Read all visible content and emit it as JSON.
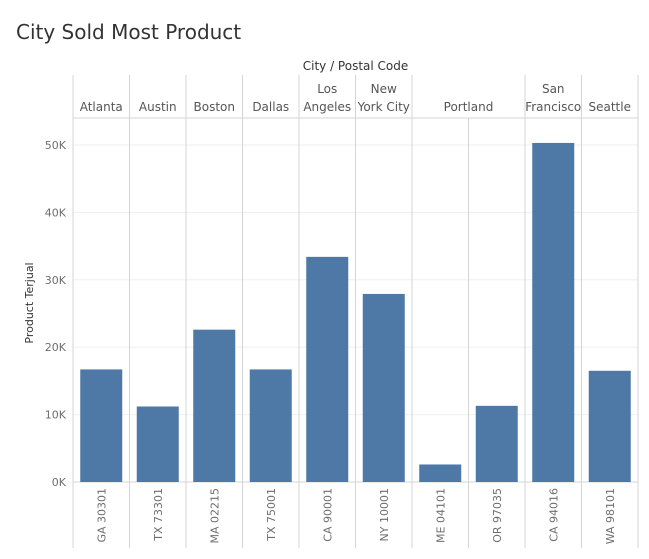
{
  "title": "City Sold Most Product",
  "header_title": "City / Postal Code",
  "colors": {
    "bar": "#4e79a7",
    "axis_text": "#6e6e6e",
    "header_text": "#555555",
    "divider": "#d4d4d4",
    "grid": "#efefef"
  },
  "chart_data": {
    "type": "bar",
    "title": "City Sold Most Product",
    "ylabel": "Product Terjual",
    "xlabel": "City / Postal Code",
    "ylim": [
      0,
      54000
    ],
    "yticks": [
      0,
      10000,
      20000,
      30000,
      40000,
      50000
    ],
    "ytick_labels": [
      "0K",
      "10K",
      "20K",
      "30K",
      "40K",
      "50K"
    ],
    "grid": true,
    "cities": [
      {
        "name": "Atlanta",
        "label_lines": [
          "Atlanta"
        ],
        "postal_codes": [
          "GA 30301"
        ]
      },
      {
        "name": "Austin",
        "label_lines": [
          "Austin"
        ],
        "postal_codes": [
          "TX 73301"
        ]
      },
      {
        "name": "Boston",
        "label_lines": [
          "Boston"
        ],
        "postal_codes": [
          "MA 02215"
        ]
      },
      {
        "name": "Dallas",
        "label_lines": [
          "Dallas"
        ],
        "postal_codes": [
          "TX 75001"
        ]
      },
      {
        "name": "Los Angeles",
        "label_lines": [
          "Los",
          "Angeles"
        ],
        "postal_codes": [
          "CA 90001"
        ]
      },
      {
        "name": "New York City",
        "label_lines": [
          "New",
          "York City"
        ],
        "postal_codes": [
          "NY 10001"
        ]
      },
      {
        "name": "Portland",
        "label_lines": [
          "Portland"
        ],
        "postal_codes": [
          "ME 04101",
          "OR 97035"
        ]
      },
      {
        "name": "San Francisco",
        "label_lines": [
          "San",
          "Francisco"
        ],
        "postal_codes": [
          "CA 94016"
        ]
      },
      {
        "name": "Seattle",
        "label_lines": [
          "Seattle"
        ],
        "postal_codes": [
          "WA 98101"
        ]
      }
    ],
    "categories": [
      "GA 30301",
      "TX 73301",
      "MA 02215",
      "TX 75001",
      "CA 90001",
      "NY 10001",
      "ME 04101",
      "OR 97035",
      "CA 94016",
      "WA 98101"
    ],
    "values": [
      16700,
      11200,
      22600,
      16700,
      33400,
      27900,
      2600,
      11300,
      50300,
      16500
    ]
  }
}
